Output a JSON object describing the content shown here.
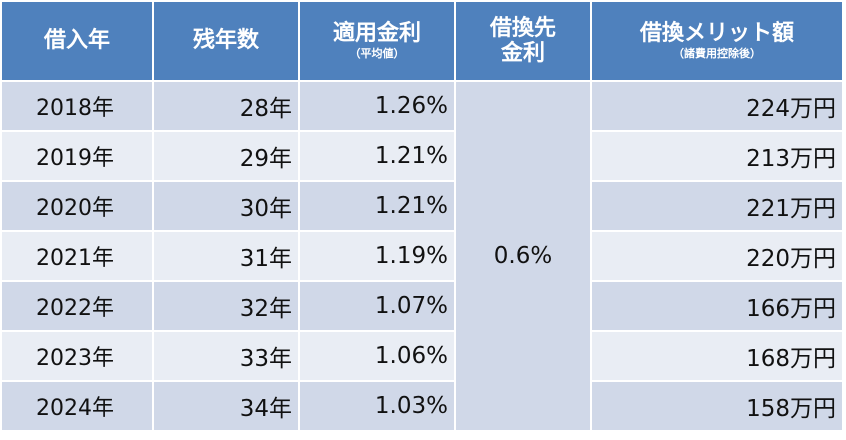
{
  "headers": {
    "year": "借入年",
    "remaining": "残年数",
    "rate": "適用金利",
    "rate_sub": "（平均値）",
    "new_rate_line1": "借換先",
    "new_rate_line2": "金利",
    "benefit": "借換メリット額",
    "benefit_sub": "（諸費用控除後）"
  },
  "new_rate": "0.6%",
  "rows": [
    {
      "year": "2018年",
      "remaining": "28年",
      "rate": "1.26%",
      "benefit": "224万円"
    },
    {
      "year": "2019年",
      "remaining": "29年",
      "rate": "1.21%",
      "benefit": "213万円"
    },
    {
      "year": "2020年",
      "remaining": "30年",
      "rate": "1.21%",
      "benefit": "221万円"
    },
    {
      "year": "2021年",
      "remaining": "31年",
      "rate": "1.19%",
      "benefit": "220万円"
    },
    {
      "year": "2022年",
      "remaining": "32年",
      "rate": "1.07%",
      "benefit": "166万円"
    },
    {
      "year": "2023年",
      "remaining": "33年",
      "rate": "1.06%",
      "benefit": "168万円"
    },
    {
      "year": "2024年",
      "remaining": "34年",
      "rate": "1.03%",
      "benefit": "158万円"
    }
  ]
}
